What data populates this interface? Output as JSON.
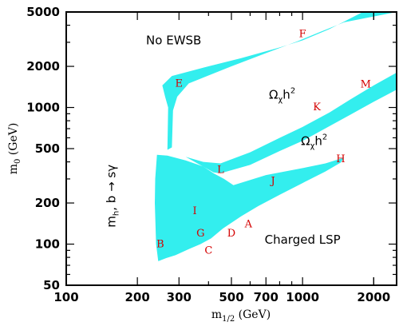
{
  "chart_data": {
    "type": "area",
    "x_scale": "log",
    "y_scale": "log",
    "xlim": [
      100,
      2500
    ],
    "ylim": [
      50,
      5000
    ],
    "xlabel": "m",
    "xlabel_sub": "1/2",
    "xlabel_unit": " (GeV)",
    "ylabel": "m",
    "ylabel_sub": "0",
    "ylabel_unit": " (GeV)",
    "x_ticks": [
      100,
      200,
      300,
      500,
      700,
      1000,
      2000
    ],
    "x_tick_labels": [
      "100",
      "200",
      "300",
      "500",
      "700",
      "1000",
      "2000"
    ],
    "y_ticks": [
      50,
      100,
      200,
      500,
      1000,
      2000,
      5000
    ],
    "y_tick_labels": [
      "50",
      "100",
      "200",
      "500",
      "1000",
      "2000",
      "5000"
    ],
    "grid": false,
    "fill_color": "#33eeee",
    "point_color": "#d40000",
    "regions": [
      {
        "name": "lower-wedge",
        "polygon": [
          [
            245,
            75
          ],
          [
            240,
            100
          ],
          [
            237,
            200
          ],
          [
            238,
            300
          ],
          [
            242,
            450
          ],
          [
            268,
            445
          ],
          [
            320,
            410
          ],
          [
            380,
            370
          ],
          [
            420,
            330
          ],
          [
            465,
            300
          ],
          [
            510,
            270
          ],
          [
            700,
            320
          ],
          [
            1000,
            360
          ],
          [
            1250,
            390
          ],
          [
            1500,
            430
          ],
          [
            1450,
            395
          ],
          [
            1250,
            340
          ],
          [
            1000,
            280
          ],
          [
            800,
            230
          ],
          [
            650,
            190
          ],
          [
            550,
            160
          ],
          [
            460,
            130
          ],
          [
            410,
            110
          ],
          [
            370,
            100
          ],
          [
            330,
            92
          ],
          [
            290,
            83
          ],
          [
            265,
            79
          ]
        ]
      },
      {
        "name": "lower-strip",
        "polygon": [
          [
            320,
            435
          ],
          [
            380,
            400
          ],
          [
            450,
            390
          ],
          [
            600,
            470
          ],
          [
            800,
            600
          ],
          [
            1000,
            720
          ],
          [
            1300,
            920
          ],
          [
            1600,
            1150
          ],
          [
            2000,
            1450
          ],
          [
            2500,
            1800
          ],
          [
            2500,
            1350
          ],
          [
            2000,
            1100
          ],
          [
            1600,
            890
          ],
          [
            1300,
            730
          ],
          [
            1000,
            570
          ],
          [
            800,
            480
          ],
          [
            600,
            380
          ],
          [
            450,
            330
          ],
          [
            420,
            335
          ]
        ]
      },
      {
        "name": "upper-strip",
        "polygon": [
          [
            268,
            490
          ],
          [
            270,
            1000
          ],
          [
            262,
            1200
          ],
          [
            255,
            1450
          ],
          [
            280,
            1700
          ],
          [
            400,
            2000
          ],
          [
            550,
            2300
          ],
          [
            800,
            2750
          ],
          [
            1000,
            3100
          ],
          [
            1300,
            3750
          ],
          [
            1800,
            5000
          ],
          [
            2500,
            5000
          ],
          [
            1500,
            4200
          ],
          [
            1200,
            3600
          ],
          [
            950,
            3050
          ],
          [
            700,
            2500
          ],
          [
            500,
            2000
          ],
          [
            330,
            1500
          ],
          [
            295,
            1200
          ],
          [
            283,
            950
          ],
          [
            280,
            510
          ]
        ]
      }
    ],
    "points": [
      {
        "label": "A",
        "x": 590,
        "y": 140
      },
      {
        "label": "B",
        "x": 250,
        "y": 100
      },
      {
        "label": "C",
        "x": 400,
        "y": 90
      },
      {
        "label": "D",
        "x": 500,
        "y": 120
      },
      {
        "label": "E",
        "x": 300,
        "y": 1500
      },
      {
        "label": "F",
        "x": 1000,
        "y": 3450
      },
      {
        "label": "G",
        "x": 370,
        "y": 120
      },
      {
        "label": "H",
        "x": 1450,
        "y": 420
      },
      {
        "label": "I",
        "x": 350,
        "y": 175
      },
      {
        "label": "J",
        "x": 750,
        "y": 290
      },
      {
        "label": "K",
        "x": 1150,
        "y": 1010
      },
      {
        "label": "L",
        "x": 450,
        "y": 350
      },
      {
        "label": "M",
        "x": 1850,
        "y": 1480
      }
    ],
    "annotations": [
      {
        "id": "no-ewsb",
        "text": "No EWSB",
        "x": 285,
        "y": 3100
      },
      {
        "id": "omega-upper",
        "text_main": "Ω",
        "text_sub": "χ",
        "text_tail": "h",
        "text_sup": "2",
        "x": 820,
        "y": 1240
      },
      {
        "id": "omega-lower",
        "text_main": "Ω",
        "text_sub": "χ",
        "text_tail": "h",
        "text_sup": "2",
        "x": 1120,
        "y": 570
      },
      {
        "id": "charged-lsp",
        "text": "Charged LSP",
        "x": 1000,
        "y": 108
      },
      {
        "id": "mh-bsg",
        "text": "m",
        "text_sub": "h",
        "text_tail": ", b → sγ",
        "x": 155,
        "y": 225
      }
    ]
  }
}
